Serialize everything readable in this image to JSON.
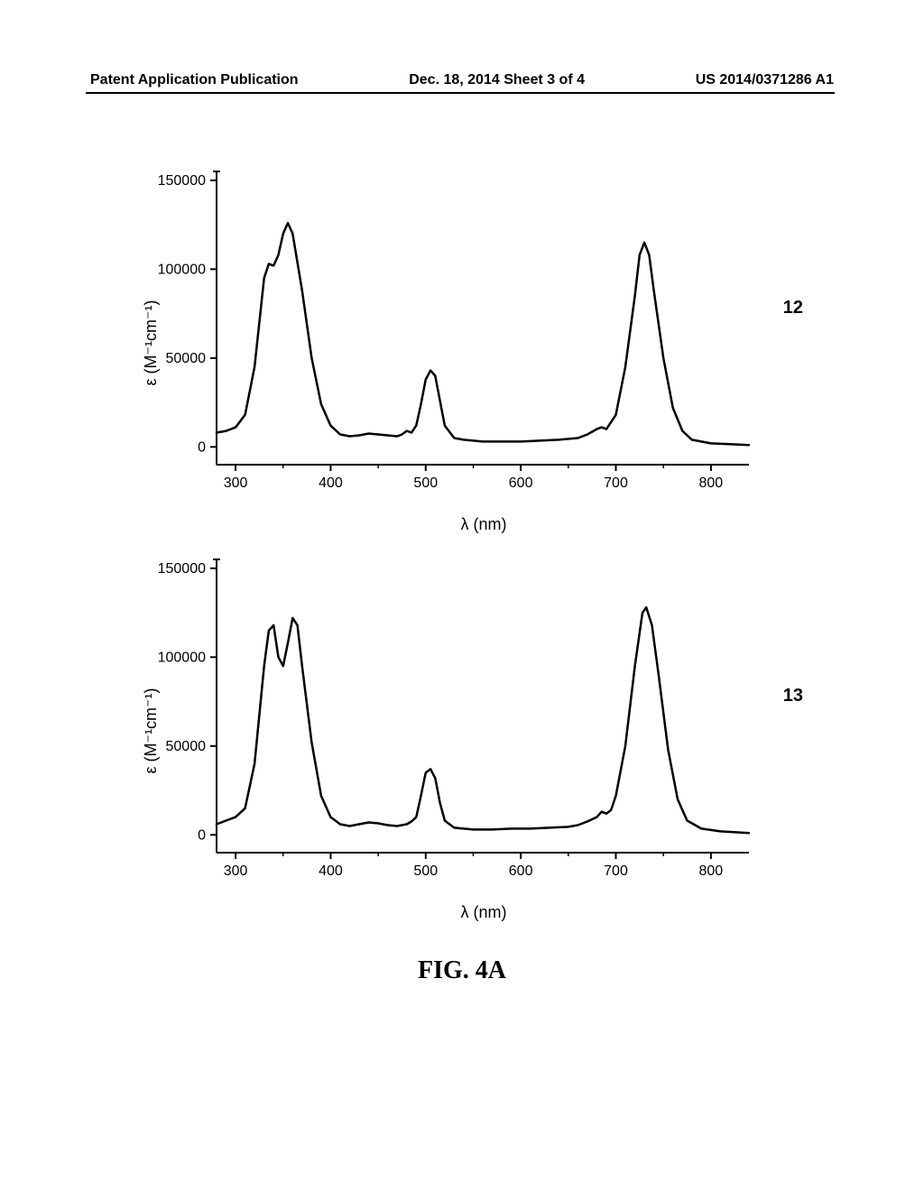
{
  "header": {
    "left": "Patent Application Publication",
    "center": "Dec. 18, 2014  Sheet 3 of 4",
    "right": "US 2014/0371286 A1"
  },
  "figure_caption": "FIG. 4A",
  "charts": [
    {
      "id": "top",
      "type": "line",
      "series_label": "12",
      "xlabel": "λ (nm)",
      "ylabel": "ε (M⁻¹cm⁻¹)",
      "xlim": [
        280,
        840
      ],
      "ylim": [
        -10000,
        155000
      ],
      "xticks": [
        300,
        400,
        500,
        600,
        700,
        800
      ],
      "yticks": [
        0,
        50000,
        100000,
        150000
      ],
      "line_color": "#000000",
      "line_width": 2.5,
      "background_color": "#ffffff",
      "axis_color": "#000000",
      "label_fontsize": 18,
      "tick_fontsize": 16,
      "data": [
        [
          280,
          8000
        ],
        [
          290,
          9000
        ],
        [
          300,
          11000
        ],
        [
          310,
          18000
        ],
        [
          320,
          45000
        ],
        [
          330,
          95000
        ],
        [
          335,
          103000
        ],
        [
          340,
          102000
        ],
        [
          345,
          108000
        ],
        [
          350,
          120000
        ],
        [
          355,
          126000
        ],
        [
          360,
          120000
        ],
        [
          370,
          88000
        ],
        [
          380,
          50000
        ],
        [
          390,
          24000
        ],
        [
          400,
          12000
        ],
        [
          410,
          7000
        ],
        [
          420,
          6000
        ],
        [
          430,
          6500
        ],
        [
          440,
          7500
        ],
        [
          450,
          7000
        ],
        [
          460,
          6500
        ],
        [
          470,
          6000
        ],
        [
          475,
          7000
        ],
        [
          480,
          9000
        ],
        [
          485,
          8000
        ],
        [
          490,
          12000
        ],
        [
          495,
          24000
        ],
        [
          500,
          38000
        ],
        [
          505,
          43000
        ],
        [
          510,
          40000
        ],
        [
          515,
          26000
        ],
        [
          520,
          12000
        ],
        [
          530,
          5000
        ],
        [
          540,
          4000
        ],
        [
          550,
          3500
        ],
        [
          560,
          3000
        ],
        [
          580,
          3000
        ],
        [
          600,
          3000
        ],
        [
          620,
          3500
        ],
        [
          640,
          4000
        ],
        [
          660,
          5000
        ],
        [
          670,
          7000
        ],
        [
          680,
          10000
        ],
        [
          685,
          11000
        ],
        [
          690,
          10000
        ],
        [
          700,
          18000
        ],
        [
          710,
          45000
        ],
        [
          720,
          85000
        ],
        [
          725,
          108000
        ],
        [
          730,
          115000
        ],
        [
          735,
          108000
        ],
        [
          740,
          88000
        ],
        [
          750,
          50000
        ],
        [
          760,
          22000
        ],
        [
          770,
          9000
        ],
        [
          780,
          4000
        ],
        [
          800,
          2000
        ],
        [
          820,
          1500
        ],
        [
          840,
          1000
        ]
      ]
    },
    {
      "id": "bottom",
      "type": "line",
      "series_label": "13",
      "xlabel": "λ (nm)",
      "ylabel": "ε (M⁻¹cm⁻¹)",
      "xlim": [
        280,
        840
      ],
      "ylim": [
        -10000,
        155000
      ],
      "xticks": [
        300,
        400,
        500,
        600,
        700,
        800
      ],
      "yticks": [
        0,
        50000,
        100000,
        150000
      ],
      "line_color": "#000000",
      "line_width": 2.5,
      "background_color": "#ffffff",
      "axis_color": "#000000",
      "label_fontsize": 18,
      "tick_fontsize": 16,
      "data": [
        [
          280,
          6000
        ],
        [
          290,
          8000
        ],
        [
          300,
          10000
        ],
        [
          310,
          15000
        ],
        [
          320,
          40000
        ],
        [
          330,
          95000
        ],
        [
          335,
          115000
        ],
        [
          340,
          118000
        ],
        [
          345,
          100000
        ],
        [
          350,
          95000
        ],
        [
          355,
          108000
        ],
        [
          360,
          122000
        ],
        [
          365,
          118000
        ],
        [
          370,
          95000
        ],
        [
          380,
          52000
        ],
        [
          390,
          22000
        ],
        [
          400,
          10000
        ],
        [
          410,
          6000
        ],
        [
          420,
          5000
        ],
        [
          430,
          6000
        ],
        [
          440,
          7000
        ],
        [
          450,
          6500
        ],
        [
          460,
          5500
        ],
        [
          470,
          5000
        ],
        [
          480,
          6000
        ],
        [
          485,
          7500
        ],
        [
          490,
          10000
        ],
        [
          495,
          22000
        ],
        [
          500,
          35000
        ],
        [
          505,
          37000
        ],
        [
          510,
          32000
        ],
        [
          515,
          18000
        ],
        [
          520,
          8000
        ],
        [
          530,
          4000
        ],
        [
          540,
          3500
        ],
        [
          550,
          3000
        ],
        [
          570,
          3000
        ],
        [
          590,
          3500
        ],
        [
          610,
          3500
        ],
        [
          630,
          4000
        ],
        [
          650,
          4500
        ],
        [
          660,
          5500
        ],
        [
          670,
          7500
        ],
        [
          680,
          10000
        ],
        [
          685,
          13000
        ],
        [
          690,
          12000
        ],
        [
          695,
          14000
        ],
        [
          700,
          22000
        ],
        [
          710,
          50000
        ],
        [
          720,
          95000
        ],
        [
          728,
          125000
        ],
        [
          732,
          128000
        ],
        [
          738,
          118000
        ],
        [
          745,
          90000
        ],
        [
          755,
          48000
        ],
        [
          765,
          20000
        ],
        [
          775,
          8000
        ],
        [
          790,
          3500
        ],
        [
          810,
          2000
        ],
        [
          840,
          1000
        ]
      ]
    }
  ]
}
